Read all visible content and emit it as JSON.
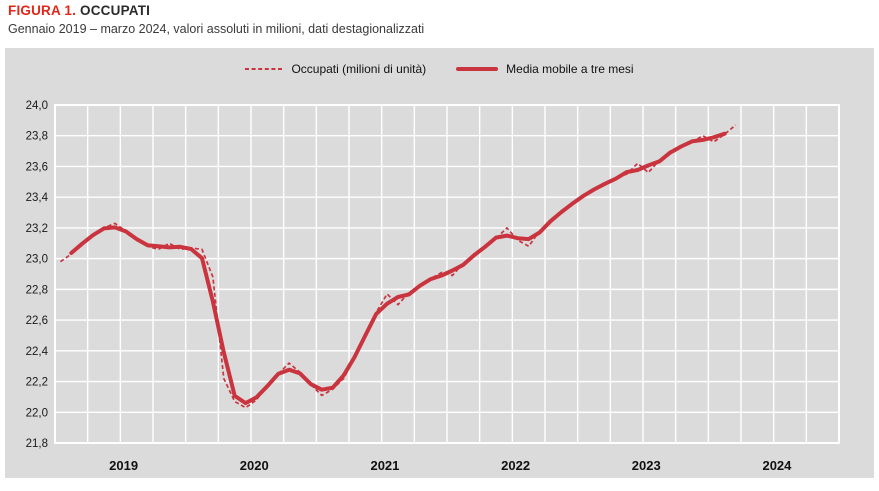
{
  "header": {
    "figure_label": "FIGURA 1.",
    "title": "OCCUPATI",
    "subtitle": "Gennaio 2019 – marzo 2024, valori assoluti in milioni, dati destagionalizzati"
  },
  "legend": {
    "series1_label": "Occupati (milioni di unità)",
    "series2_label": "Media mobile a tre mesi"
  },
  "colors": {
    "title_red": "#e2261a",
    "series_red": "#c9343f",
    "panel_bg": "#dbdbdb",
    "grid": "#ffffff",
    "axis_text": "#1a1a1a"
  },
  "chart_data": {
    "type": "line",
    "title": "FIGURA 1. OCCUPATI",
    "subtitle": "Gennaio 2019 – marzo 2024, valori assoluti in milioni, dati destagionalizzati",
    "x_start_month": "2019-01",
    "x_end_month": "2024-03",
    "x_axis_span_months": 72,
    "grid": "on",
    "gridline_interval_months": 3,
    "legend_position": "top-center",
    "ylim": [
      21.8,
      24.0
    ],
    "y_ticks": [
      {
        "label": "24,0",
        "value": 24.0
      },
      {
        "label": "23,8",
        "value": 23.8
      },
      {
        "label": "23,6",
        "value": 23.6
      },
      {
        "label": "23,4",
        "value": 23.4
      },
      {
        "label": "23,2",
        "value": 23.2
      },
      {
        "label": "23,0",
        "value": 23.0
      },
      {
        "label": "22,8",
        "value": 22.8
      },
      {
        "label": "22,6",
        "value": 22.6
      },
      {
        "label": "22,4",
        "value": 22.4
      },
      {
        "label": "22,2",
        "value": 22.2
      },
      {
        "label": "22,0",
        "value": 22.0
      },
      {
        "label": "21,8",
        "value": 21.8
      }
    ],
    "x_tick_labels": [
      "2019",
      "2020",
      "2021",
      "2022",
      "2023",
      "2024"
    ],
    "series": [
      {
        "name": "Occupati (milioni di unità)",
        "style": "dashed",
        "start_month_index": 0,
        "values": [
          22.98,
          23.03,
          23.1,
          23.16,
          23.2,
          23.23,
          23.18,
          23.12,
          23.08,
          23.06,
          23.1,
          23.06,
          23.07,
          23.06,
          22.88,
          22.22,
          22.07,
          22.03,
          22.08,
          22.18,
          22.25,
          22.32,
          22.26,
          22.18,
          22.11,
          22.15,
          22.22,
          22.35,
          22.5,
          22.65,
          22.77,
          22.7,
          22.78,
          22.82,
          22.87,
          22.91,
          22.89,
          22.97,
          23.02,
          23.08,
          23.13,
          23.2,
          23.12,
          23.08,
          23.18,
          23.25,
          23.3,
          23.36,
          23.41,
          23.45,
          23.49,
          23.52,
          23.55,
          23.62,
          23.56,
          23.64,
          23.7,
          23.73,
          23.76,
          23.8,
          23.76,
          23.81,
          23.87
        ]
      },
      {
        "name": "Media mobile a tre mesi",
        "style": "solid",
        "derivation": "centered 3-month moving average of Occupati",
        "start_month_index": 1,
        "values": [
          23.037,
          23.097,
          23.153,
          23.197,
          23.203,
          23.177,
          23.127,
          23.087,
          23.08,
          23.073,
          23.077,
          23.063,
          23.003,
          22.72,
          22.39,
          22.107,
          22.06,
          22.097,
          22.17,
          22.25,
          22.277,
          22.253,
          22.183,
          22.147,
          22.16,
          22.24,
          22.357,
          22.5,
          22.64,
          22.707,
          22.75,
          22.767,
          22.823,
          22.867,
          22.89,
          22.923,
          22.96,
          23.023,
          23.077,
          23.137,
          23.15,
          23.133,
          23.127,
          23.17,
          23.243,
          23.303,
          23.357,
          23.407,
          23.45,
          23.487,
          23.52,
          23.563,
          23.577,
          23.607,
          23.633,
          23.69,
          23.73,
          23.763,
          23.773,
          23.79,
          23.813
        ]
      }
    ]
  }
}
